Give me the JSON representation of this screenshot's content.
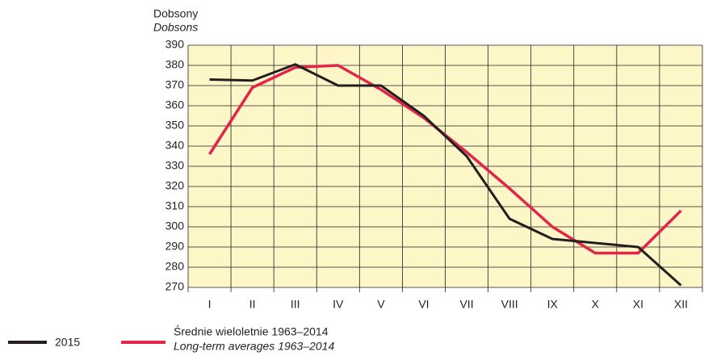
{
  "chart_data": {
    "type": "line",
    "ylabel": "Dobsony",
    "ylabel_en": "Dobsons",
    "categories": [
      "I",
      "II",
      "III",
      "IV",
      "V",
      "VI",
      "VII",
      "VIII",
      "IX",
      "X",
      "XI",
      "XII"
    ],
    "series": [
      {
        "name": "2015",
        "color": "#231f20",
        "values": [
          373,
          372.5,
          380.5,
          370,
          370,
          355,
          335,
          304,
          294,
          292,
          290,
          271
        ]
      },
      {
        "name": "Średnie wieloletnie 1963–2014",
        "name_en": "Long-term averages 1963–2014",
        "color": "#e4254a",
        "values": [
          336,
          369,
          379,
          380,
          368,
          354,
          337,
          319,
          300,
          287,
          287,
          308
        ]
      }
    ],
    "ylim": [
      270,
      390
    ],
    "yticks": [
      270,
      280,
      290,
      300,
      310,
      320,
      330,
      340,
      350,
      360,
      370,
      380,
      390
    ],
    "grid": true,
    "background": "#fdf6c6"
  }
}
